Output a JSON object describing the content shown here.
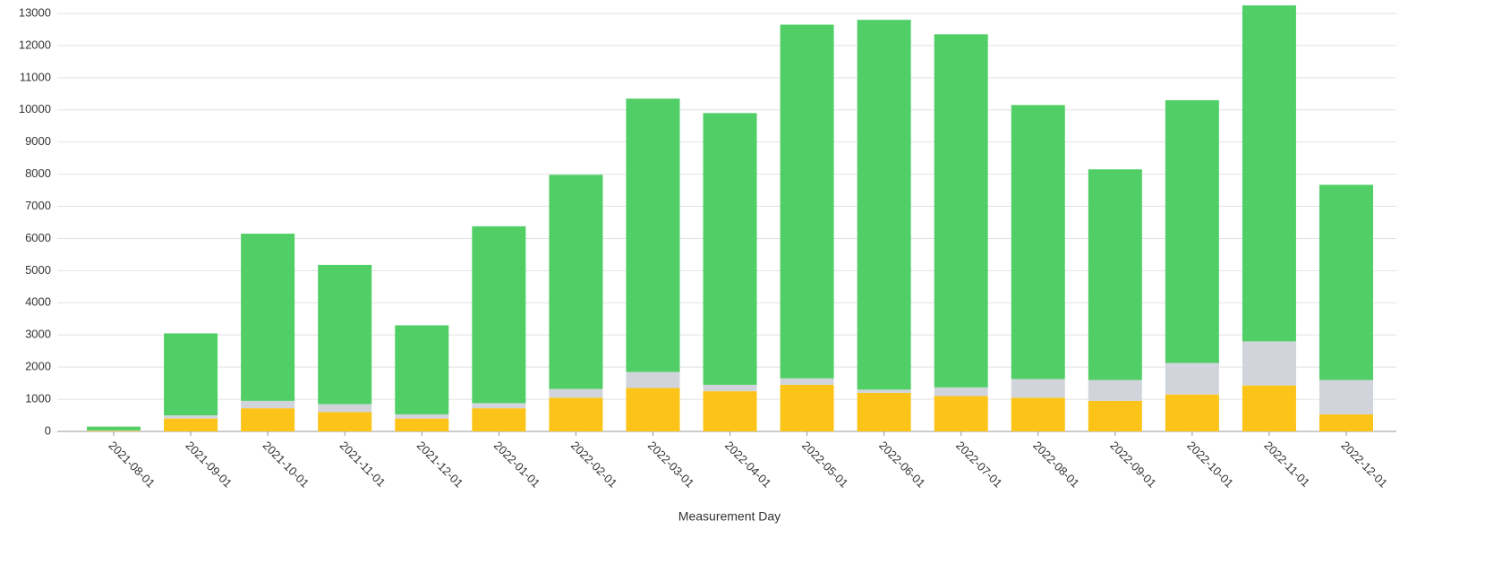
{
  "chart_data": {
    "type": "stacked_bar",
    "x_label": "Measurement Day",
    "categories": [
      "2021-08-01",
      "2021-09-01",
      "2021-10-01",
      "2021-11-01",
      "2021-12-01",
      "2022-01-01",
      "2022-02-01",
      "2022-03-01",
      "2022-04-01",
      "2022-05-01",
      "2022-06-01",
      "2022-07-01",
      "2022-08-01",
      "2022-09-01",
      "2022-10-01",
      "2022-11-01",
      "2022-12-01"
    ],
    "series": [
      {
        "color": "#fcc419",
        "values": [
          20,
          400,
          720,
          600,
          400,
          720,
          1050,
          1350,
          1250,
          1450,
          1200,
          1100,
          1050,
          950,
          1150,
          1430,
          530
        ]
      },
      {
        "color": "#d1d5db",
        "values": [
          10,
          100,
          230,
          250,
          130,
          160,
          270,
          500,
          200,
          200,
          100,
          270,
          580,
          650,
          980,
          1370,
          1070
        ]
      },
      {
        "color": "#51cf66",
        "values": [
          120,
          2550,
          5200,
          4330,
          2770,
          5500,
          6660,
          8500,
          8450,
          11000,
          11500,
          10980,
          8520,
          6550,
          8170,
          10450,
          6070
        ]
      }
    ],
    "ylim": [
      0,
      13400
    ],
    "yticks": [
      0,
      1000,
      2000,
      3000,
      4000,
      5000,
      6000,
      7000,
      8000,
      9000,
      10000,
      11000,
      12000,
      13000
    ],
    "grid": true
  }
}
